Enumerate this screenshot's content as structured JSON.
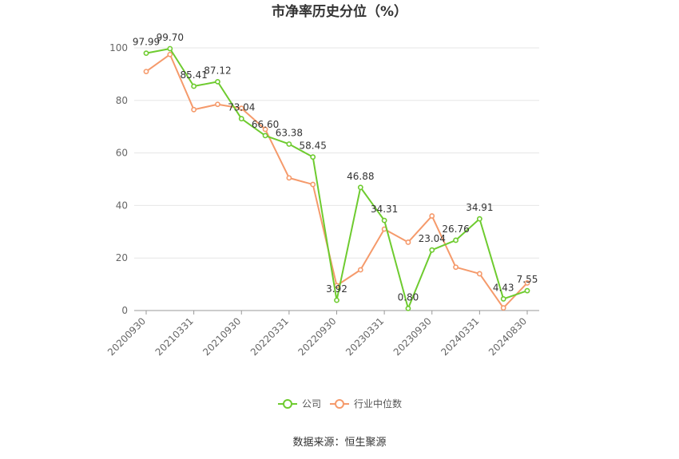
{
  "chart_data": {
    "type": "line",
    "title": "市净率历史分位（%）",
    "ylim": [
      0,
      100
    ],
    "y_ticks": [
      0,
      20,
      40,
      60,
      80,
      100
    ],
    "x_tick_labels": [
      "20200930",
      "20210331",
      "20210930",
      "20220331",
      "20220930",
      "20230331",
      "20230930",
      "20240331",
      "20240830"
    ],
    "x_tick_indices": [
      0,
      2,
      4,
      6,
      8,
      10,
      12,
      14,
      16
    ],
    "point_count": 17,
    "series": [
      {
        "name": "公司",
        "color": "#6ecb2f",
        "values": [
          97.99,
          99.7,
          85.41,
          87.12,
          73.04,
          66.6,
          63.38,
          58.45,
          3.92,
          46.88,
          34.31,
          0.8,
          23.04,
          26.76,
          34.91,
          4.43,
          7.55
        ],
        "labels": [
          "97.99",
          "99.70",
          "85.41",
          "87.12",
          "73.04",
          "66.60",
          "63.38",
          "58.45",
          "3.92",
          "46.88",
          "34.31",
          "0.80",
          "23.04",
          "26.76",
          "34.91",
          "4.43",
          "7.55"
        ]
      },
      {
        "name": "行业中位数",
        "color": "#f59a6b",
        "values": [
          91,
          97.5,
          76.5,
          78.5,
          77,
          69,
          50.5,
          48,
          9.5,
          15.5,
          31,
          26,
          36,
          16.5,
          14,
          1,
          10.5
        ]
      }
    ],
    "legend": [
      "公司",
      "行业中位数"
    ],
    "grid": true,
    "legend_position": "bottom-center"
  },
  "source_text": "数据来源：恒生聚源"
}
